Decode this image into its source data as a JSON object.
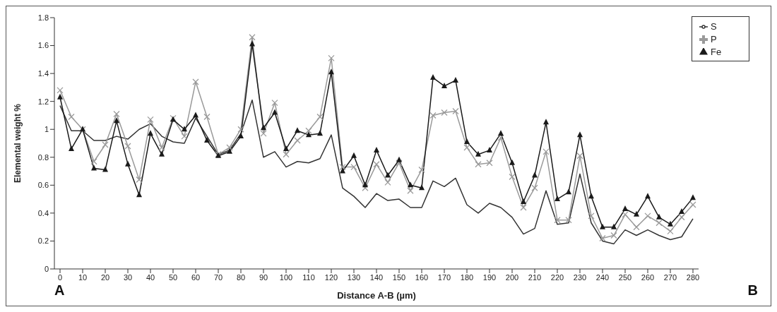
{
  "chart_data": {
    "type": "line",
    "xlabel": "Distance A-B (µm)",
    "ylabel": "Elemental weight %",
    "annotations": [
      "A",
      "B"
    ],
    "x": [
      0,
      5,
      10,
      15,
      20,
      25,
      30,
      35,
      40,
      45,
      50,
      55,
      60,
      65,
      70,
      75,
      80,
      85,
      90,
      95,
      100,
      105,
      110,
      115,
      120,
      125,
      130,
      135,
      140,
      145,
      150,
      155,
      160,
      165,
      170,
      175,
      180,
      185,
      190,
      195,
      200,
      205,
      210,
      215,
      220,
      225,
      230,
      235,
      240,
      245,
      250,
      255,
      260,
      265,
      270,
      275,
      280
    ],
    "series": [
      {
        "name": "S",
        "color": "#333333",
        "marker": "none",
        "values": [
          1.17,
          0.99,
          0.99,
          0.92,
          0.92,
          0.95,
          0.93,
          1.0,
          1.04,
          0.95,
          0.91,
          0.9,
          1.08,
          0.95,
          0.82,
          0.85,
          0.97,
          1.21,
          0.8,
          0.84,
          0.73,
          0.77,
          0.76,
          0.79,
          0.96,
          0.58,
          0.52,
          0.44,
          0.54,
          0.49,
          0.5,
          0.44,
          0.44,
          0.63,
          0.59,
          0.65,
          0.46,
          0.4,
          0.47,
          0.44,
          0.37,
          0.25,
          0.29,
          0.56,
          0.32,
          0.33,
          0.68,
          0.33,
          0.2,
          0.18,
          0.28,
          0.24,
          0.28,
          0.24,
          0.21,
          0.23,
          0.36
        ]
      },
      {
        "name": "P",
        "color": "#9a9a9a",
        "marker": "cross",
        "values": [
          1.28,
          1.09,
          1.0,
          0.77,
          0.89,
          1.11,
          0.88,
          0.64,
          1.07,
          0.87,
          1.08,
          0.95,
          1.34,
          1.09,
          0.82,
          0.87,
          1.0,
          1.66,
          0.97,
          1.19,
          0.82,
          0.92,
          0.99,
          1.09,
          1.51,
          0.73,
          0.73,
          0.58,
          0.75,
          0.62,
          0.76,
          0.56,
          0.71,
          1.1,
          1.12,
          1.13,
          0.87,
          0.75,
          0.76,
          0.94,
          0.66,
          0.44,
          0.58,
          0.84,
          0.35,
          0.35,
          0.81,
          0.38,
          0.22,
          0.24,
          0.39,
          0.3,
          0.38,
          0.33,
          0.27,
          0.37,
          0.46
        ]
      },
      {
        "name": "Fe",
        "color": "#1a1a1a",
        "marker": "triangle",
        "values": [
          1.23,
          0.86,
          1.0,
          0.72,
          0.71,
          1.06,
          0.75,
          0.53,
          0.97,
          0.82,
          1.07,
          1.0,
          1.1,
          0.92,
          0.81,
          0.84,
          0.95,
          1.61,
          1.01,
          1.12,
          0.86,
          0.99,
          0.96,
          0.97,
          1.41,
          0.7,
          0.81,
          0.6,
          0.85,
          0.67,
          0.78,
          0.6,
          0.58,
          1.37,
          1.31,
          1.35,
          0.91,
          0.82,
          0.85,
          0.97,
          0.76,
          0.48,
          0.67,
          1.05,
          0.5,
          0.55,
          0.96,
          0.52,
          0.3,
          0.3,
          0.43,
          0.39,
          0.52,
          0.37,
          0.32,
          0.41,
          0.51
        ]
      }
    ],
    "xlim": [
      -2.5,
      282.5
    ],
    "xticks": [
      0,
      10,
      20,
      30,
      40,
      50,
      60,
      70,
      80,
      90,
      100,
      110,
      120,
      130,
      140,
      150,
      160,
      170,
      180,
      190,
      200,
      210,
      220,
      230,
      240,
      250,
      260,
      270,
      280
    ],
    "ylim": [
      0,
      1.8
    ],
    "yticks": [
      0,
      0.2,
      0.4,
      0.6,
      0.8,
      1,
      1.2,
      1.4,
      1.6,
      1.8
    ],
    "grid": false,
    "legend": "top right",
    "line_style": "solid"
  }
}
